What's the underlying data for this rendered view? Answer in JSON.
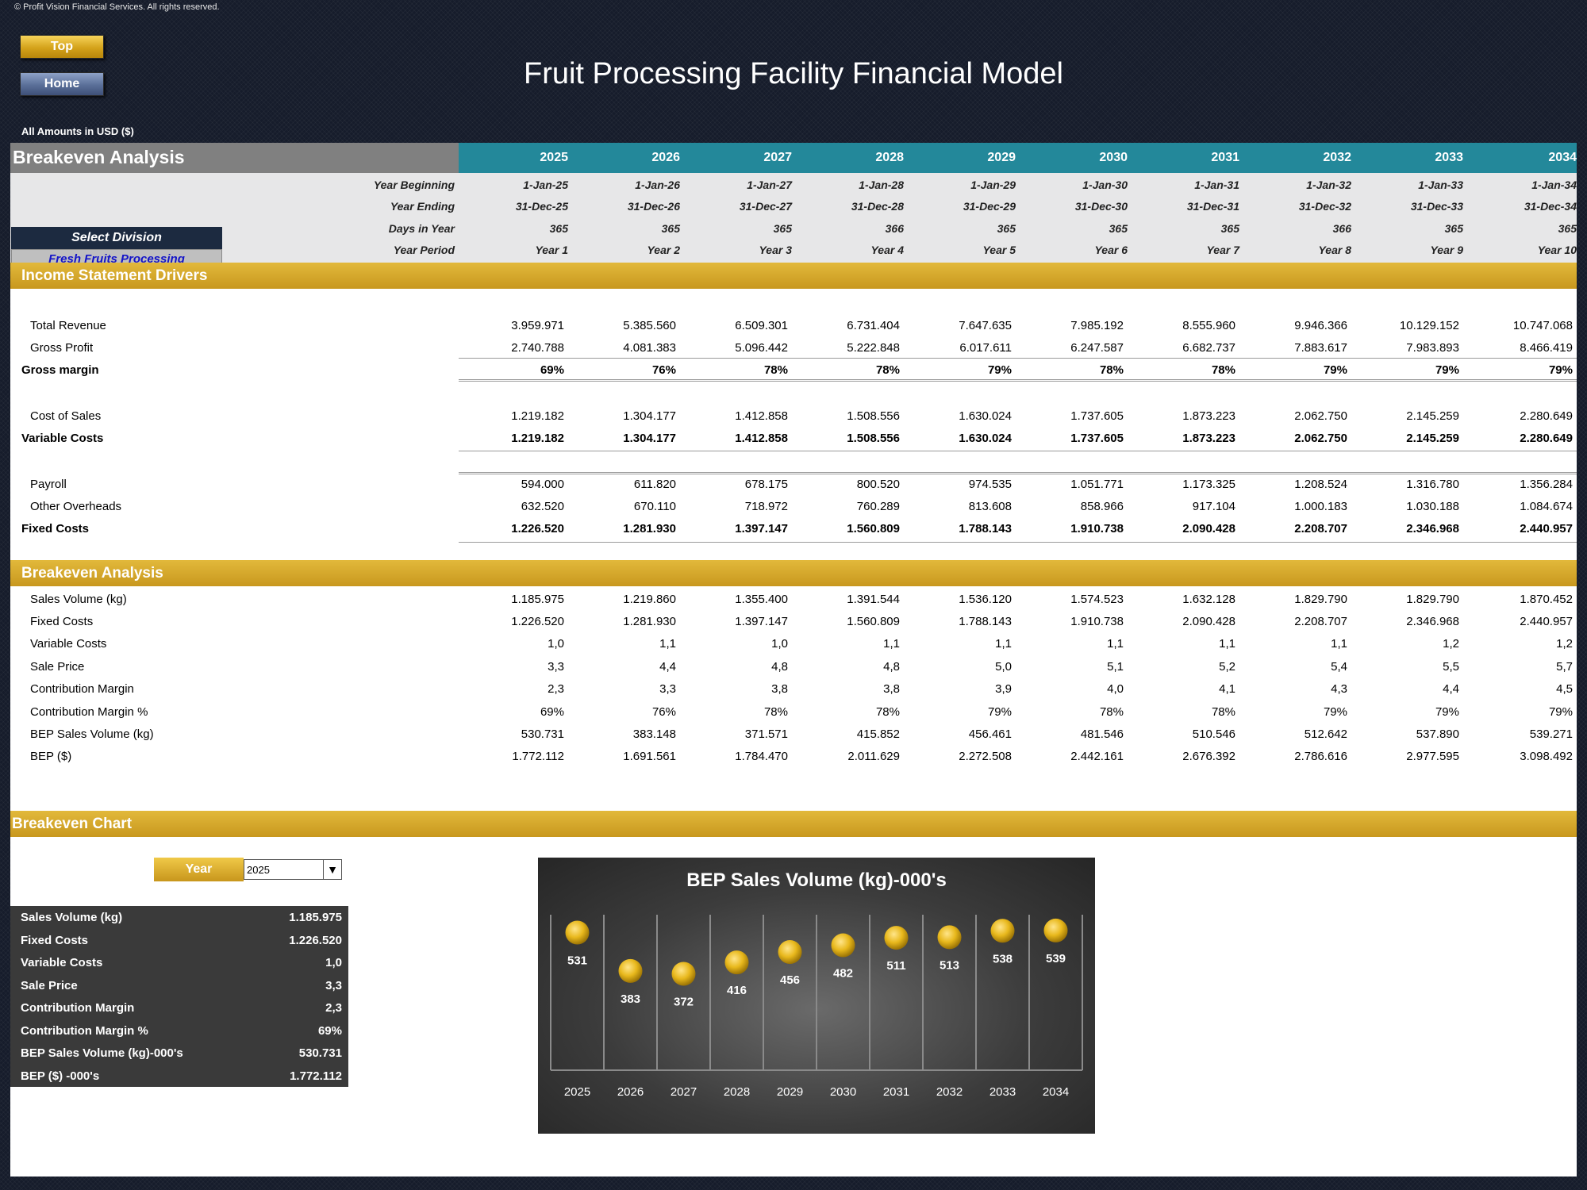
{
  "copyright": "© Profit Vision Financial Services. All rights reserved.",
  "buttons": {
    "top": "Top",
    "home": "Home"
  },
  "title": "Fruit Processing Facility Financial Model",
  "amounts_note": "All Amounts in  USD ($)",
  "sheet_title": "Breakeven Analysis",
  "years": [
    "2025",
    "2026",
    "2027",
    "2028",
    "2029",
    "2030",
    "2031",
    "2032",
    "2033",
    "2034"
  ],
  "date_rows": [
    {
      "label": "Year Beginning",
      "values": [
        "1-Jan-25",
        "1-Jan-26",
        "1-Jan-27",
        "1-Jan-28",
        "1-Jan-29",
        "1-Jan-30",
        "1-Jan-31",
        "1-Jan-32",
        "1-Jan-33",
        "1-Jan-34"
      ]
    },
    {
      "label": "Year Ending",
      "values": [
        "31-Dec-25",
        "31-Dec-26",
        "31-Dec-27",
        "31-Dec-28",
        "31-Dec-29",
        "31-Dec-30",
        "31-Dec-31",
        "31-Dec-32",
        "31-Dec-33",
        "31-Dec-34"
      ]
    },
    {
      "label": "Days in Year",
      "values": [
        "365",
        "365",
        "365",
        "366",
        "365",
        "365",
        "365",
        "366",
        "365",
        "365"
      ]
    },
    {
      "label": "Year Period",
      "values": [
        "Year 1",
        "Year 2",
        "Year 3",
        "Year 4",
        "Year 5",
        "Year 6",
        "Year 7",
        "Year 8",
        "Year 9",
        "Year 10"
      ]
    }
  ],
  "division": {
    "label": "Select Division",
    "value": "Fresh Fruits Processing"
  },
  "sections": {
    "income": "Income Statement Drivers",
    "breakeven": "Breakeven Analysis",
    "chart": "Breakeven Chart"
  },
  "income_rows": [
    {
      "label": "Total Revenue",
      "bold": false,
      "values": [
        "3.959.971",
        "5.385.560",
        "6.509.301",
        "6.731.404",
        "7.647.635",
        "7.985.192",
        "8.555.960",
        "9.946.366",
        "10.129.152",
        "10.747.068"
      ]
    },
    {
      "label": "Gross Profit",
      "bold": false,
      "values": [
        "2.740.788",
        "4.081.383",
        "5.096.442",
        "5.222.848",
        "6.017.611",
        "6.247.587",
        "6.682.737",
        "7.883.617",
        "7.983.893",
        "8.466.419"
      ]
    },
    {
      "label": "Gross margin",
      "bold": true,
      "values": [
        "69%",
        "76%",
        "78%",
        "78%",
        "79%",
        "78%",
        "78%",
        "79%",
        "79%",
        "79%"
      ]
    },
    {
      "label": "Cost of Sales",
      "bold": false,
      "values": [
        "1.219.182",
        "1.304.177",
        "1.412.858",
        "1.508.556",
        "1.630.024",
        "1.737.605",
        "1.873.223",
        "2.062.750",
        "2.145.259",
        "2.280.649"
      ]
    },
    {
      "label": "Variable Costs",
      "bold": true,
      "values": [
        "1.219.182",
        "1.304.177",
        "1.412.858",
        "1.508.556",
        "1.630.024",
        "1.737.605",
        "1.873.223",
        "2.062.750",
        "2.145.259",
        "2.280.649"
      ]
    },
    {
      "label": "Payroll",
      "bold": false,
      "values": [
        "594.000",
        "611.820",
        "678.175",
        "800.520",
        "974.535",
        "1.051.771",
        "1.173.325",
        "1.208.524",
        "1.316.780",
        "1.356.284"
      ]
    },
    {
      "label": "Other Overheads",
      "bold": false,
      "values": [
        "632.520",
        "670.110",
        "718.972",
        "760.289",
        "813.608",
        "858.966",
        "917.104",
        "1.000.183",
        "1.030.188",
        "1.084.674"
      ]
    },
    {
      "label": "Fixed Costs",
      "bold": true,
      "values": [
        "1.226.520",
        "1.281.930",
        "1.397.147",
        "1.560.809",
        "1.788.143",
        "1.910.738",
        "2.090.428",
        "2.208.707",
        "2.346.968",
        "2.440.957"
      ]
    }
  ],
  "breakeven_rows": [
    {
      "label": "Sales Volume (kg)",
      "values": [
        "1.185.975",
        "1.219.860",
        "1.355.400",
        "1.391.544",
        "1.536.120",
        "1.574.523",
        "1.632.128",
        "1.829.790",
        "1.829.790",
        "1.870.452"
      ]
    },
    {
      "label": "Fixed Costs",
      "values": [
        "1.226.520",
        "1.281.930",
        "1.397.147",
        "1.560.809",
        "1.788.143",
        "1.910.738",
        "2.090.428",
        "2.208.707",
        "2.346.968",
        "2.440.957"
      ]
    },
    {
      "label": "Variable Costs",
      "values": [
        "1,0",
        "1,1",
        "1,0",
        "1,1",
        "1,1",
        "1,1",
        "1,1",
        "1,1",
        "1,2",
        "1,2"
      ]
    },
    {
      "label": "Sale Price",
      "values": [
        "3,3",
        "4,4",
        "4,8",
        "4,8",
        "5,0",
        "5,1",
        "5,2",
        "5,4",
        "5,5",
        "5,7"
      ]
    },
    {
      "label": "Contribution Margin",
      "values": [
        "2,3",
        "3,3",
        "3,8",
        "3,8",
        "3,9",
        "4,0",
        "4,1",
        "4,3",
        "4,4",
        "4,5"
      ]
    },
    {
      "label": "Contribution Margin %",
      "values": [
        "69%",
        "76%",
        "78%",
        "78%",
        "79%",
        "78%",
        "78%",
        "79%",
        "79%",
        "79%"
      ]
    },
    {
      "label": "BEP Sales Volume (kg)",
      "values": [
        "530.731",
        "383.148",
        "371.571",
        "415.852",
        "456.461",
        "481.546",
        "510.546",
        "512.642",
        "537.890",
        "539.271"
      ]
    },
    {
      "label": "BEP ($)",
      "values": [
        "1.772.112",
        "1.691.561",
        "1.784.470",
        "2.011.629",
        "2.272.508",
        "2.442.161",
        "2.676.392",
        "2.786.616",
        "2.977.595",
        "3.098.492"
      ]
    }
  ],
  "year_selector": {
    "label": "Year",
    "value": "2025"
  },
  "summary": [
    {
      "label": "Sales Volume (kg)",
      "value": "1.185.975"
    },
    {
      "label": "Fixed Costs",
      "value": "1.226.520"
    },
    {
      "label": "Variable Costs",
      "value": "1,0"
    },
    {
      "label": "Sale Price",
      "value": "3,3"
    },
    {
      "label": "Contribution Margin",
      "value": "2,3"
    },
    {
      "label": "Contribution Margin %",
      "value": "69%"
    },
    {
      "label": "BEP Sales Volume (kg)-000's",
      "value": "530.731"
    },
    {
      "label": "BEP ($) -000's",
      "value": "1.772.112"
    }
  ],
  "colors": {
    "header_teal": "#23889a",
    "section_gold": "#d4a62a",
    "marker_gold": "#e8b81c"
  },
  "chart_data": {
    "type": "scatter",
    "title": "BEP Sales Volume (kg)-000's",
    "categories": [
      "2025",
      "2026",
      "2027",
      "2028",
      "2029",
      "2030",
      "2031",
      "2032",
      "2033",
      "2034"
    ],
    "values": [
      531,
      383,
      372,
      416,
      456,
      482,
      511,
      513,
      538,
      539
    ],
    "ylim": [
      0,
      600
    ],
    "grid": "vertical",
    "legend": "none"
  }
}
